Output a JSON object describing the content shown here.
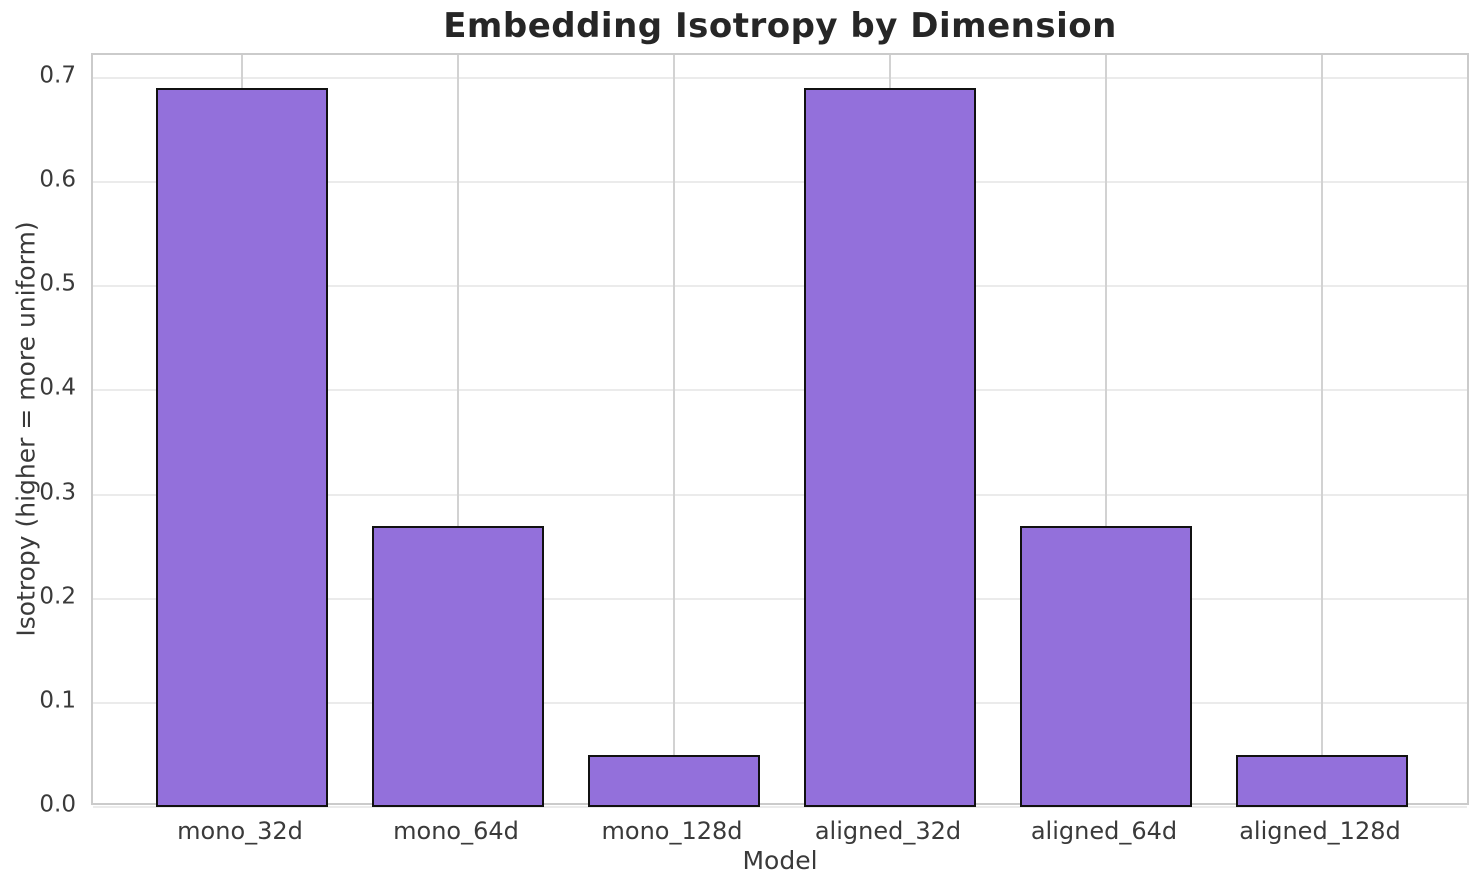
{
  "page": {
    "background_color": "#ffffff"
  },
  "chart_data": {
    "type": "bar",
    "title": "Embedding Isotropy by Dimension",
    "xlabel": "Model",
    "ylabel": "Isotropy (higher = more uniform)",
    "categories": [
      "mono_32d",
      "mono_64d",
      "mono_128d",
      "aligned_32d",
      "aligned_64d",
      "aligned_128d"
    ],
    "values": [
      0.69,
      0.27,
      0.05,
      0.69,
      0.27,
      0.05
    ],
    "ytick_values": [
      0.0,
      0.1,
      0.2,
      0.3,
      0.4,
      0.5,
      0.6,
      0.7
    ],
    "ytick_labels": [
      "0.0",
      "0.1",
      "0.2",
      "0.3",
      "0.4",
      "0.5",
      "0.6",
      "0.7"
    ],
    "ylim": [
      0,
      0.722
    ],
    "xlim": [
      -0.69,
      5.69
    ],
    "bar_width": 0.8,
    "grid": true,
    "legend_position": "none",
    "bar_color": "#9370DB",
    "bar_edge_color": "#111111",
    "spine_color": "#cbcbcb",
    "vgrid_color": "#d2d2d2",
    "hgrid_color": "#ebebeb",
    "title_color": "#262626",
    "tick_color": "#3a3a3a"
  }
}
